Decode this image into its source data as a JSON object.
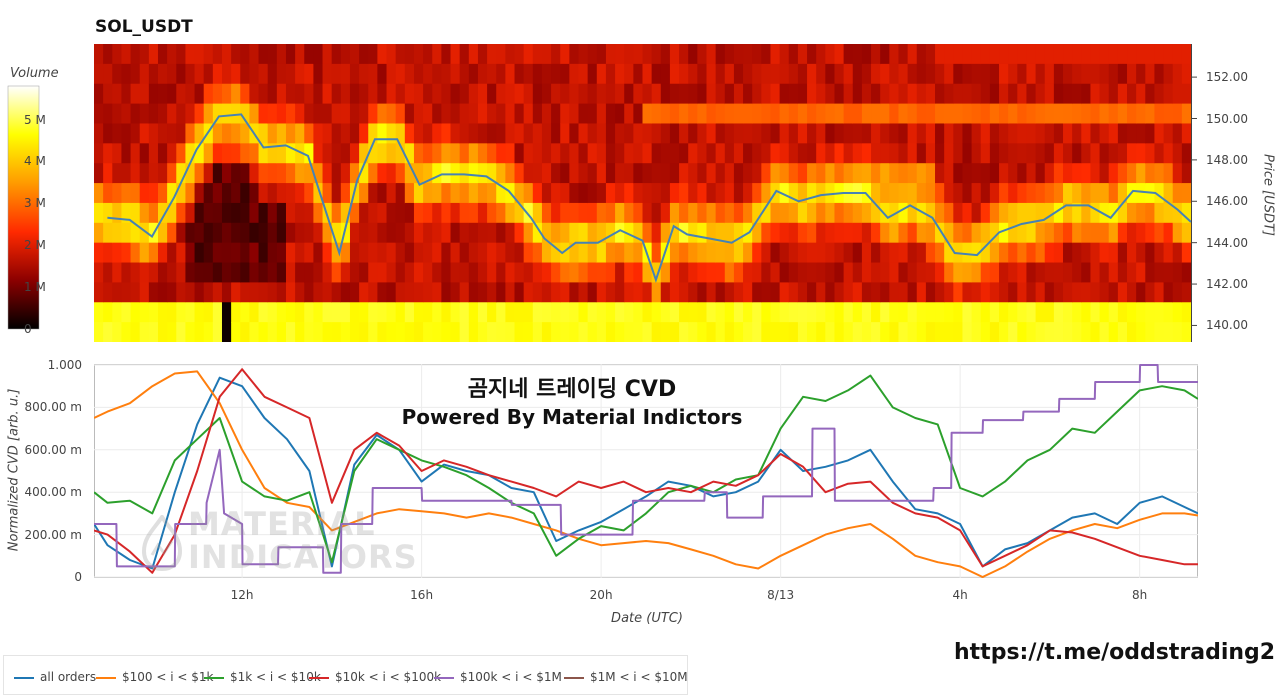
{
  "chart_data": [
    {
      "type": "heatmap",
      "title": "SOL_USDT",
      "colorbar": {
        "title": "Volume",
        "ticks": [
          "0",
          "1 M",
          "2 M",
          "3 M",
          "4 M",
          "5 M"
        ],
        "range": [
          0,
          5800000
        ],
        "colors": [
          "#000000",
          "#8b0000",
          "#ff2a00",
          "#ff9a00",
          "#ffff00",
          "#ffffff"
        ]
      },
      "price_axis": {
        "label": "Price [USDT]",
        "ticks": [
          "140.00",
          "142.00",
          "144.00",
          "146.00",
          "148.00",
          "150.00",
          "152.00"
        ],
        "range": [
          139.2,
          153.6
        ],
        "side": "right"
      },
      "price_line": {
        "color": "#4682b4",
        "x_hours": [
          9,
          9.5,
          10,
          10.5,
          11,
          11.5,
          12,
          12.5,
          13,
          13.5,
          13.9,
          14.2,
          14.6,
          15,
          15.5,
          16,
          16.5,
          17,
          17.5,
          18,
          18.5,
          18.8,
          19.2,
          19.5,
          20,
          20.5,
          21,
          21.3,
          21.7,
          22,
          22.5,
          23,
          23.4,
          24,
          24.5,
          25,
          25.5,
          26,
          26.5,
          27,
          27.5,
          28,
          28.5,
          29,
          29.5,
          30,
          30.5,
          31,
          31.5,
          32,
          32.5,
          33,
          33.3
        ],
        "y_price": [
          145.2,
          145.1,
          144.3,
          146.2,
          148.5,
          150.1,
          150.2,
          148.6,
          148.7,
          148.2,
          145.5,
          143.5,
          147.0,
          149.0,
          149.0,
          146.8,
          147.3,
          147.3,
          147.2,
          146.5,
          145.2,
          144.2,
          143.5,
          144.0,
          144.0,
          144.6,
          144.1,
          142.2,
          144.8,
          144.4,
          144.2,
          144.0,
          144.5,
          146.5,
          146.0,
          146.3,
          146.4,
          146.4,
          145.2,
          145.8,
          145.2,
          143.5,
          143.4,
          144.5,
          144.9,
          145.1,
          145.8,
          145.8,
          145.2,
          146.5,
          146.4,
          145.6,
          145.0
        ]
      },
      "time_range_hours": [
        8.7,
        33.3
      ]
    },
    {
      "type": "line",
      "title": "",
      "xlabel": "Date (UTC)",
      "ylabel": "Normalized CVD [arb. u.]",
      "x_ticks": [
        "12h",
        "16h",
        "20h",
        "8/13",
        "4h",
        "8h"
      ],
      "x_tick_hours": [
        12,
        16,
        20,
        24,
        28,
        32
      ],
      "y_ticks": [
        "0",
        "200.00 m",
        "400.00 m",
        "600.00 m",
        "800.00 m",
        "1.000"
      ],
      "ylim": [
        0,
        1
      ],
      "xlim_hours": [
        8.7,
        33.3
      ],
      "series": [
        {
          "name": "all orders",
          "color": "#1f77b4",
          "x": [
            8.7,
            9,
            9.5,
            10,
            10.5,
            11,
            11.5,
            12,
            12.5,
            13,
            13.5,
            14,
            14.5,
            15,
            15.5,
            16,
            16.5,
            17,
            17.5,
            18,
            18.5,
            19,
            19.5,
            20,
            20.5,
            21,
            21.5,
            22,
            22.5,
            23,
            23.5,
            24,
            24.5,
            25,
            25.5,
            26,
            26.5,
            27,
            27.5,
            28,
            28.5,
            29,
            29.5,
            30,
            30.5,
            31,
            31.5,
            32,
            32.5,
            33,
            33.3
          ],
          "y": [
            0.25,
            0.15,
            0.08,
            0.04,
            0.4,
            0.72,
            0.94,
            0.9,
            0.75,
            0.65,
            0.5,
            0.05,
            0.53,
            0.67,
            0.6,
            0.45,
            0.53,
            0.5,
            0.48,
            0.42,
            0.4,
            0.17,
            0.22,
            0.26,
            0.32,
            0.38,
            0.45,
            0.43,
            0.38,
            0.4,
            0.45,
            0.6,
            0.5,
            0.52,
            0.55,
            0.6,
            0.45,
            0.32,
            0.3,
            0.25,
            0.05,
            0.13,
            0.16,
            0.22,
            0.28,
            0.3,
            0.25,
            0.35,
            0.38,
            0.33,
            0.3
          ]
        },
        {
          "name": "$100 < i < $1k",
          "color": "#ff7f0e",
          "x": [
            8.7,
            9,
            9.5,
            10,
            10.5,
            11,
            11.5,
            12,
            12.5,
            13,
            13.5,
            14,
            14.5,
            15,
            15.5,
            16,
            16.5,
            17,
            17.5,
            18,
            18.5,
            19,
            19.5,
            20,
            20.5,
            21,
            21.5,
            22,
            22.5,
            23,
            23.5,
            24,
            24.5,
            25,
            25.5,
            26,
            26.5,
            27,
            27.5,
            28,
            28.5,
            29,
            29.5,
            30,
            30.5,
            31,
            31.5,
            32,
            32.5,
            33,
            33.3
          ],
          "y": [
            0.75,
            0.78,
            0.82,
            0.9,
            0.96,
            0.97,
            0.82,
            0.6,
            0.42,
            0.35,
            0.33,
            0.22,
            0.26,
            0.3,
            0.32,
            0.31,
            0.3,
            0.28,
            0.3,
            0.28,
            0.25,
            0.22,
            0.18,
            0.15,
            0.16,
            0.17,
            0.16,
            0.13,
            0.1,
            0.06,
            0.04,
            0.1,
            0.15,
            0.2,
            0.23,
            0.25,
            0.18,
            0.1,
            0.07,
            0.05,
            0.0,
            0.05,
            0.12,
            0.18,
            0.22,
            0.25,
            0.23,
            0.27,
            0.3,
            0.3,
            0.29
          ]
        },
        {
          "name": "$1k < i < $10k",
          "color": "#2ca02c",
          "x": [
            8.7,
            9,
            9.5,
            10,
            10.5,
            11,
            11.5,
            12,
            12.5,
            13,
            13.5,
            14,
            14.5,
            15,
            15.5,
            16,
            16.5,
            17,
            17.5,
            18,
            18.5,
            19,
            19.5,
            20,
            20.5,
            21,
            21.5,
            22,
            22.5,
            23,
            23.5,
            24,
            24.5,
            25,
            25.5,
            26,
            26.5,
            27,
            27.5,
            28,
            28.5,
            29,
            29.5,
            30,
            30.5,
            31,
            31.5,
            32,
            32.5,
            33,
            33.3
          ],
          "y": [
            0.4,
            0.35,
            0.36,
            0.3,
            0.55,
            0.65,
            0.75,
            0.45,
            0.38,
            0.36,
            0.4,
            0.07,
            0.5,
            0.65,
            0.6,
            0.55,
            0.52,
            0.48,
            0.42,
            0.35,
            0.3,
            0.1,
            0.18,
            0.24,
            0.22,
            0.3,
            0.4,
            0.43,
            0.4,
            0.46,
            0.48,
            0.7,
            0.85,
            0.83,
            0.88,
            0.95,
            0.8,
            0.75,
            0.72,
            0.42,
            0.38,
            0.45,
            0.55,
            0.6,
            0.7,
            0.68,
            0.78,
            0.88,
            0.9,
            0.88,
            0.84
          ]
        },
        {
          "name": "$10k < i < $100k",
          "color": "#d62728",
          "x": [
            8.7,
            9,
            9.5,
            10,
            10.5,
            11,
            11.5,
            12,
            12.5,
            13,
            13.5,
            14,
            14.5,
            15,
            15.5,
            16,
            16.5,
            17,
            17.5,
            18,
            18.5,
            19,
            19.5,
            20,
            20.5,
            21,
            21.5,
            22,
            22.5,
            23,
            23.5,
            24,
            24.5,
            25,
            25.5,
            26,
            26.5,
            27,
            27.5,
            28,
            28.5,
            29,
            29.5,
            30,
            30.5,
            31,
            31.5,
            32,
            32.5,
            33,
            33.3
          ],
          "y": [
            0.22,
            0.2,
            0.12,
            0.02,
            0.2,
            0.5,
            0.85,
            0.98,
            0.85,
            0.8,
            0.75,
            0.35,
            0.6,
            0.68,
            0.62,
            0.5,
            0.55,
            0.52,
            0.48,
            0.45,
            0.42,
            0.38,
            0.45,
            0.42,
            0.45,
            0.4,
            0.42,
            0.4,
            0.45,
            0.43,
            0.48,
            0.58,
            0.52,
            0.4,
            0.44,
            0.45,
            0.35,
            0.3,
            0.28,
            0.22,
            0.05,
            0.1,
            0.15,
            0.22,
            0.21,
            0.18,
            0.14,
            0.1,
            0.08,
            0.06,
            0.06
          ]
        },
        {
          "name": "$100k < i < $1M",
          "color": "#9467bd",
          "x": [
            8.7,
            9.2,
            9.21,
            10.5,
            10.51,
            11.2,
            11.21,
            11.5,
            11.6,
            12,
            12.01,
            12.8,
            12.81,
            13.8,
            13.81,
            14.2,
            14.21,
            14.9,
            14.91,
            16,
            16.01,
            18,
            18.01,
            19.1,
            19.11,
            20.7,
            20.71,
            22.3,
            22.31,
            22.8,
            22.81,
            23.6,
            23.61,
            24.7,
            24.71,
            25.2,
            25.21,
            27.4,
            27.41,
            27.8,
            27.81,
            28.5,
            28.51,
            29.4,
            29.41,
            30.2,
            30.21,
            31.0,
            31.01,
            32.0,
            32.01,
            32.4,
            32.41,
            33.3
          ],
          "y": [
            0.25,
            0.25,
            0.05,
            0.05,
            0.25,
            0.25,
            0.35,
            0.6,
            0.3,
            0.25,
            0.06,
            0.06,
            0.14,
            0.14,
            0.02,
            0.02,
            0.25,
            0.25,
            0.42,
            0.42,
            0.36,
            0.36,
            0.34,
            0.34,
            0.2,
            0.2,
            0.36,
            0.36,
            0.4,
            0.4,
            0.28,
            0.28,
            0.38,
            0.38,
            0.7,
            0.7,
            0.36,
            0.36,
            0.42,
            0.42,
            0.68,
            0.68,
            0.74,
            0.74,
            0.78,
            0.78,
            0.84,
            0.84,
            0.92,
            0.92,
            1.0,
            1.0,
            0.92,
            0.92
          ]
        },
        {
          "name": "$1M < i < $10M",
          "color": "#8c564b",
          "x": [],
          "y": []
        }
      ]
    }
  ],
  "overlay": {
    "line1": "곰지네 트레이딩 CVD",
    "line2": "Powered By Material Indictors"
  },
  "watermark": {
    "line1": "MATERIAL",
    "line2": "INDICATORS"
  },
  "telegram_link": "https://t.me/oddstrading2"
}
